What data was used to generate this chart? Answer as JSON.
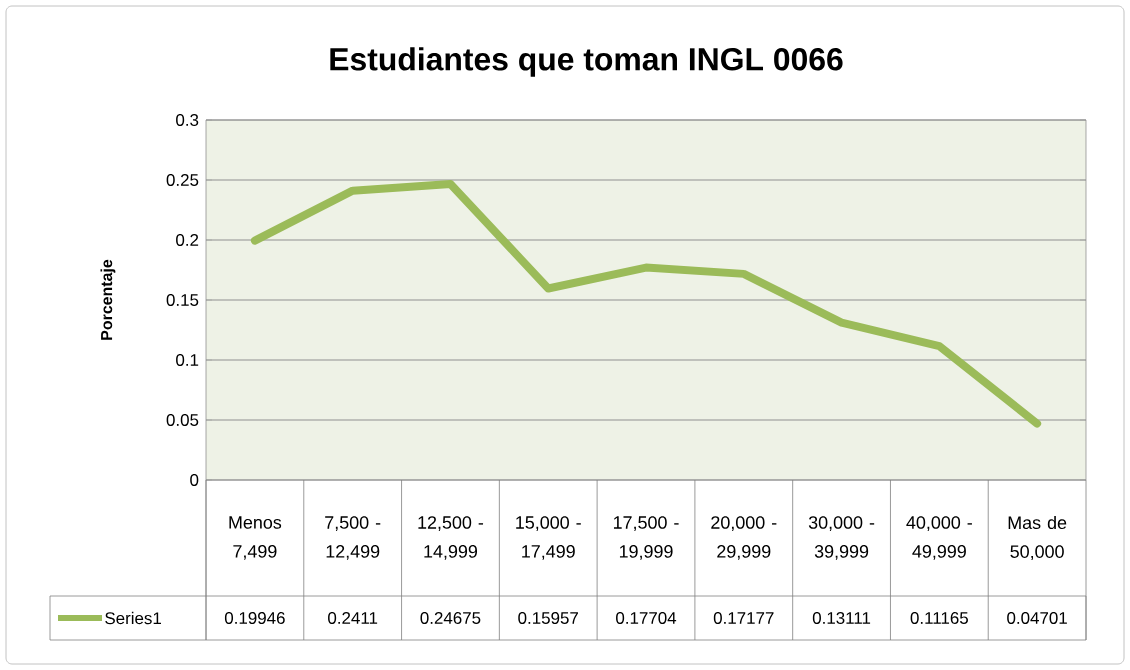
{
  "chart_data": {
    "type": "line",
    "title": "Estudiantes que toman INGL 0066",
    "ylabel": "Porcentaje",
    "categories": [
      "Menos 7,499",
      "7,500 - 12,499",
      "12,500 - 14,999",
      "15,000 - 17,499",
      "17,500 - 19,999",
      "20,000 - 29,999",
      "30,000 - 39,999",
      "40,000 - 49,999",
      "Mas de 50,000"
    ],
    "series": [
      {
        "name": "Series1",
        "color": "#9bbb59",
        "values": [
          0.19946,
          0.2411,
          0.24675,
          0.15957,
          0.17704,
          0.17177,
          0.13111,
          0.11165,
          0.04701
        ]
      }
    ],
    "ylim": [
      0,
      0.3
    ],
    "yticks": [
      0,
      0.05,
      0.1,
      0.15,
      0.2,
      0.25,
      0.3
    ],
    "grid": "y",
    "marker": "none",
    "line_style": "solid",
    "data_labels": true
  }
}
